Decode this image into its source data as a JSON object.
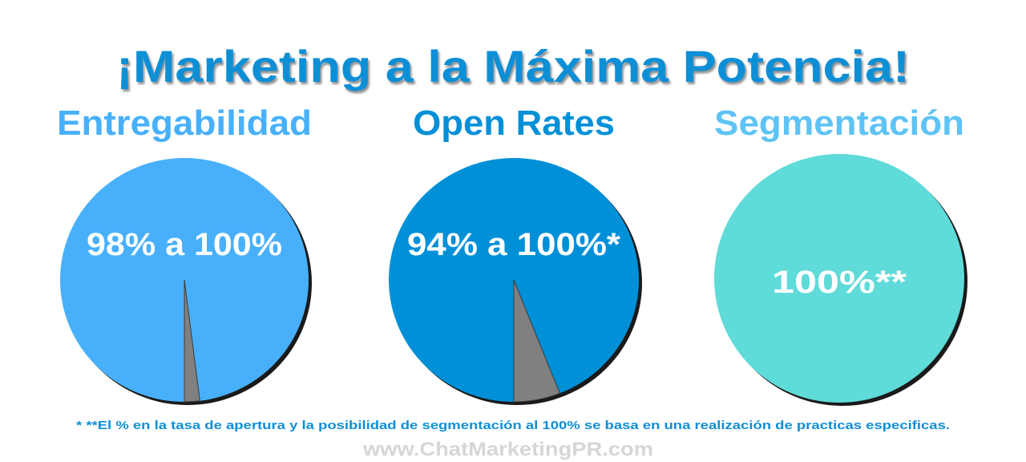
{
  "title": "¡Marketing a la Máxima Potencia!",
  "footnote": "* **El % en la tasa de apertura y la posibilidad de segmentación al 100% se basa en una realización de practicas especificas.",
  "watermark": "www.ChatMarketingPR.com",
  "colors": {
    "title": "#0e8fd6",
    "footnote": "#0e8fd6",
    "watermark": "#d6d6d6",
    "remainder": "#808080"
  },
  "chart_data": [
    {
      "type": "pie",
      "title": "Entregabilidad",
      "label": "98% a 100%",
      "values": [
        98,
        2
      ],
      "colors": [
        "#48b0fa",
        "#808080"
      ],
      "title_color": "#48b0fa"
    },
    {
      "type": "pie",
      "title": "Open Rates",
      "label": "94% a 100%*",
      "values": [
        94,
        6
      ],
      "colors": [
        "#0090d8",
        "#808080"
      ],
      "title_color": "#0090d8"
    },
    {
      "type": "pie",
      "title": "Segmentación",
      "label": "100%**",
      "values": [
        100
      ],
      "colors": [
        "#5fdbd9"
      ],
      "title_color": "#5ec3f5"
    }
  ]
}
